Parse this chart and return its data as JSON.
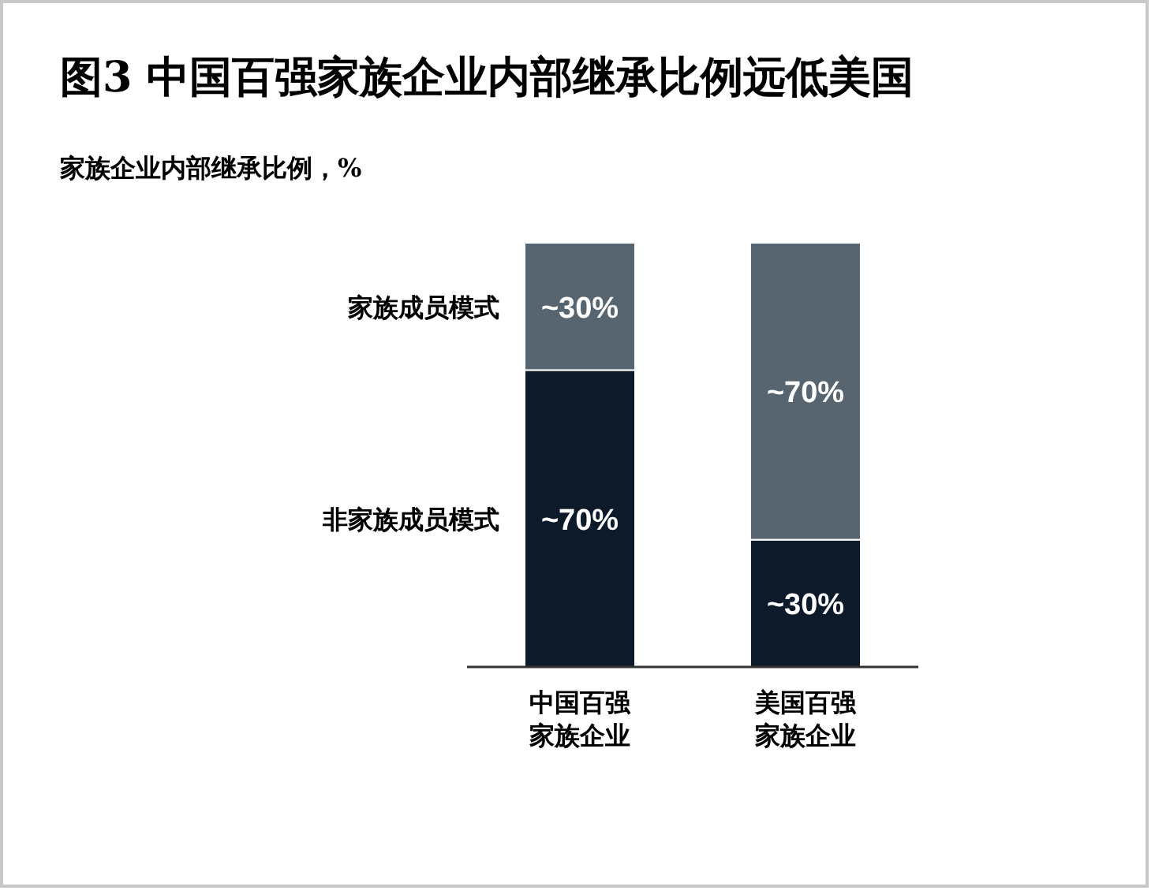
{
  "chart_data": {
    "type": "bar",
    "stacked": true,
    "title": "图3 中国百强家族企业内部继承比例远低美国",
    "subtitle": "家族企业内部继承比例，%",
    "categories": [
      "中国百强家族企业",
      "美国百强家族企业"
    ],
    "series": [
      {
        "name": "非家族成员模式",
        "color": "#0c1a2a",
        "values": [
          70,
          30
        ],
        "value_labels": [
          "~70%",
          "~30%"
        ]
      },
      {
        "name": "家族成员模式",
        "color": "#566570",
        "values": [
          30,
          70
        ],
        "value_labels": [
          "~30%",
          "~70%"
        ]
      }
    ]
  }
}
